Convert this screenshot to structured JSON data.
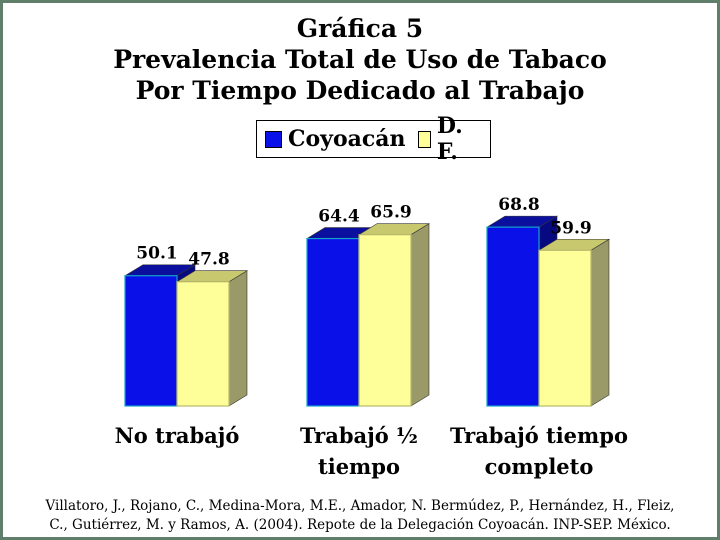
{
  "title_lines": [
    "Gráfica 5",
    "Prevalencia Total de Uso de Tabaco",
    "Por Tiempo Dedicado al Trabajo"
  ],
  "source_lines": [
    "Villatoro, J., Rojano, C., Medina-Mora, M.E., Amador, N. Bermúdez, P., Hernández, H., Fleiz,",
    "C., Gutiérrez, M. y Ramos, A. (2004). Repote de la Delegación Coyoacán. INP-SEP. México."
  ],
  "colors": {
    "coyoacan": "#0a10e8",
    "df": "#ffff9a",
    "frame_border": "#5f7f6b"
  },
  "chart_data": {
    "type": "bar",
    "title": "Gráfica 5 Prevalencia Total de Uso de Tabaco Por Tiempo Dedicado al Trabajo",
    "categories": [
      [
        "No trabajó"
      ],
      [
        "Trabajó ½",
        "tiempo"
      ],
      [
        "Trabajó tiempo",
        "completo"
      ]
    ],
    "series": [
      {
        "name": "Coyoacán",
        "values": [
          50.1,
          64.4,
          68.8
        ]
      },
      {
        "name": "D. F.",
        "values": [
          47.8,
          65.9,
          59.9
        ]
      }
    ],
    "value_labels": [
      [
        "50.1",
        "64.4",
        "68.8"
      ],
      [
        "47.8",
        "65.9",
        "59.9"
      ]
    ],
    "ylim": [
      0,
      100
    ],
    "grid": false,
    "legend_position": "top-center",
    "style": "3d"
  }
}
